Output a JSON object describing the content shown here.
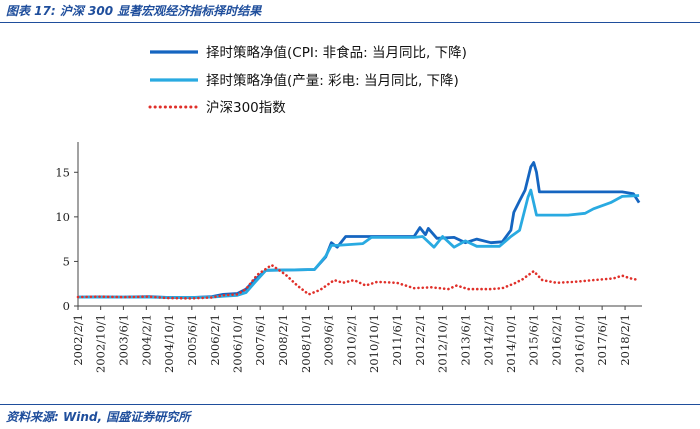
{
  "figure": {
    "title": "图表 17:  沪深 300 显著宏观经济指标择时结果",
    "source": "资料来源:  Wind, 国盛证券研究所"
  },
  "colors": {
    "series1": "#1565c0",
    "series2": "#29aae1",
    "series3": "#e0302a",
    "axis": "#444444",
    "header_blue": "#1f4e9c"
  },
  "chart_data": {
    "type": "line",
    "title": "",
    "xlabel": "",
    "ylabel": "",
    "xlim": [
      "2002-02-01",
      "2018-08-01"
    ],
    "ylim": [
      0,
      17.5
    ],
    "yticks": [
      0,
      5,
      10,
      15
    ],
    "xticks": [
      "2002/2/1",
      "2002/10/1",
      "2003/6/1",
      "2004/2/1",
      "2004/10/1",
      "2005/6/1",
      "2006/2/1",
      "2006/10/1",
      "2007/6/1",
      "2008/2/1",
      "2008/10/1",
      "2009/6/1",
      "2010/2/1",
      "2010/10/1",
      "2011/6/1",
      "2012/2/1",
      "2012/10/1",
      "2013/6/1",
      "2014/2/1",
      "2014/10/1",
      "2015/6/1",
      "2016/2/1",
      "2016/10/1",
      "2017/6/1",
      "2018/2/1"
    ],
    "grid": false,
    "legend_position": "top",
    "series": [
      {
        "name": "择时策略净值(CPI: 非食品: 当月同比, 下降)",
        "style": "solid",
        "points": [
          [
            "2002-02-01",
            1.0
          ],
          [
            "2002-09-01",
            1.02
          ],
          [
            "2003-06-01",
            1.0
          ],
          [
            "2004-03-01",
            1.05
          ],
          [
            "2004-09-01",
            0.97
          ],
          [
            "2005-06-01",
            0.95
          ],
          [
            "2006-01-01",
            1.05
          ],
          [
            "2006-05-01",
            1.3
          ],
          [
            "2006-10-01",
            1.4
          ],
          [
            "2007-01-01",
            1.9
          ],
          [
            "2007-04-01",
            2.9
          ],
          [
            "2007-08-01",
            4.0
          ],
          [
            "2008-06-01",
            4.05
          ],
          [
            "2009-01-01",
            4.1
          ],
          [
            "2009-05-01",
            5.5
          ],
          [
            "2009-07-01",
            7.1
          ],
          [
            "2009-09-01",
            6.6
          ],
          [
            "2009-12-01",
            7.8
          ],
          [
            "2010-06-01",
            7.8
          ],
          [
            "2011-01-01",
            7.8
          ],
          [
            "2011-12-01",
            7.8
          ],
          [
            "2012-02-01",
            8.8
          ],
          [
            "2012-04-01",
            8.0
          ],
          [
            "2012-05-01",
            8.7
          ],
          [
            "2012-08-01",
            7.6
          ],
          [
            "2013-02-01",
            7.7
          ],
          [
            "2013-06-01",
            7.1
          ],
          [
            "2013-10-01",
            7.5
          ],
          [
            "2014-03-01",
            7.1
          ],
          [
            "2014-07-01",
            7.2
          ],
          [
            "2014-10-01",
            8.5
          ],
          [
            "2014-11-01",
            10.5
          ],
          [
            "2015-01-01",
            11.8
          ],
          [
            "2015-03-01",
            13.0
          ],
          [
            "2015-05-01",
            15.6
          ],
          [
            "2015-06-01",
            16.1
          ],
          [
            "2015-07-01",
            15.0
          ],
          [
            "2015-08-01",
            12.8
          ],
          [
            "2016-06-01",
            12.8
          ],
          [
            "2017-06-01",
            12.8
          ],
          [
            "2018-01-01",
            12.8
          ],
          [
            "2018-05-01",
            12.6
          ],
          [
            "2018-07-01",
            11.6
          ]
        ]
      },
      {
        "name": "择时策略净值(产量: 彩电: 当月同比, 下降)",
        "style": "solid",
        "points": [
          [
            "2002-02-01",
            1.0
          ],
          [
            "2002-09-01",
            1.0
          ],
          [
            "2003-06-01",
            1.0
          ],
          [
            "2004-03-01",
            1.0
          ],
          [
            "2004-09-01",
            0.95
          ],
          [
            "2005-06-01",
            0.95
          ],
          [
            "2006-01-01",
            1.0
          ],
          [
            "2006-05-01",
            1.1
          ],
          [
            "2006-10-01",
            1.2
          ],
          [
            "2007-01-01",
            1.5
          ],
          [
            "2007-04-01",
            2.6
          ],
          [
            "2007-08-01",
            4.0
          ],
          [
            "2008-06-01",
            4.05
          ],
          [
            "2009-01-01",
            4.1
          ],
          [
            "2009-05-01",
            5.6
          ],
          [
            "2009-07-01",
            6.8
          ],
          [
            "2009-09-01",
            6.8
          ],
          [
            "2010-06-01",
            7.0
          ],
          [
            "2010-09-01",
            7.7
          ],
          [
            "2011-06-01",
            7.7
          ],
          [
            "2011-12-01",
            7.7
          ],
          [
            "2012-03-01",
            7.8
          ],
          [
            "2012-07-01",
            6.6
          ],
          [
            "2012-10-01",
            7.8
          ],
          [
            "2013-02-01",
            6.6
          ],
          [
            "2013-06-01",
            7.3
          ],
          [
            "2013-10-01",
            6.7
          ],
          [
            "2014-06-01",
            6.7
          ],
          [
            "2014-10-01",
            7.8
          ],
          [
            "2015-01-01",
            8.5
          ],
          [
            "2015-04-01",
            12.2
          ],
          [
            "2015-05-01",
            13.0
          ],
          [
            "2015-07-01",
            10.2
          ],
          [
            "2016-06-01",
            10.2
          ],
          [
            "2016-12-01",
            10.4
          ],
          [
            "2017-03-01",
            10.9
          ],
          [
            "2017-09-01",
            11.6
          ],
          [
            "2018-01-01",
            12.3
          ],
          [
            "2018-07-01",
            12.4
          ]
        ]
      },
      {
        "name": "沪深300指数",
        "style": "dotted",
        "points": [
          [
            "2002-02-01",
            1.0
          ],
          [
            "2002-09-01",
            1.05
          ],
          [
            "2003-06-01",
            1.0
          ],
          [
            "2004-03-01",
            1.05
          ],
          [
            "2004-09-01",
            0.9
          ],
          [
            "2005-06-01",
            0.85
          ],
          [
            "2006-01-01",
            0.95
          ],
          [
            "2006-05-01",
            1.2
          ],
          [
            "2006-10-01",
            1.3
          ],
          [
            "2007-01-01",
            1.9
          ],
          [
            "2007-05-01",
            3.5
          ],
          [
            "2007-10-01",
            4.6
          ],
          [
            "2008-03-01",
            3.5
          ],
          [
            "2008-07-01",
            2.3
          ],
          [
            "2008-11-01",
            1.3
          ],
          [
            "2009-03-01",
            1.8
          ],
          [
            "2009-08-01",
            2.9
          ],
          [
            "2009-11-01",
            2.6
          ],
          [
            "2010-03-01",
            2.9
          ],
          [
            "2010-07-01",
            2.3
          ],
          [
            "2010-11-01",
            2.7
          ],
          [
            "2011-06-01",
            2.6
          ],
          [
            "2011-12-01",
            2.0
          ],
          [
            "2012-06-01",
            2.1
          ],
          [
            "2012-12-01",
            1.9
          ],
          [
            "2013-03-01",
            2.3
          ],
          [
            "2013-07-01",
            1.9
          ],
          [
            "2014-03-01",
            1.9
          ],
          [
            "2014-07-01",
            2.0
          ],
          [
            "2014-11-01",
            2.5
          ],
          [
            "2015-02-01",
            3.0
          ],
          [
            "2015-06-01",
            3.9
          ],
          [
            "2015-09-01",
            2.9
          ],
          [
            "2016-02-01",
            2.6
          ],
          [
            "2016-08-01",
            2.7
          ],
          [
            "2017-03-01",
            2.9
          ],
          [
            "2017-10-01",
            3.1
          ],
          [
            "2018-01-01",
            3.4
          ],
          [
            "2018-04-01",
            3.1
          ],
          [
            "2018-07-01",
            2.9
          ]
        ]
      }
    ]
  }
}
